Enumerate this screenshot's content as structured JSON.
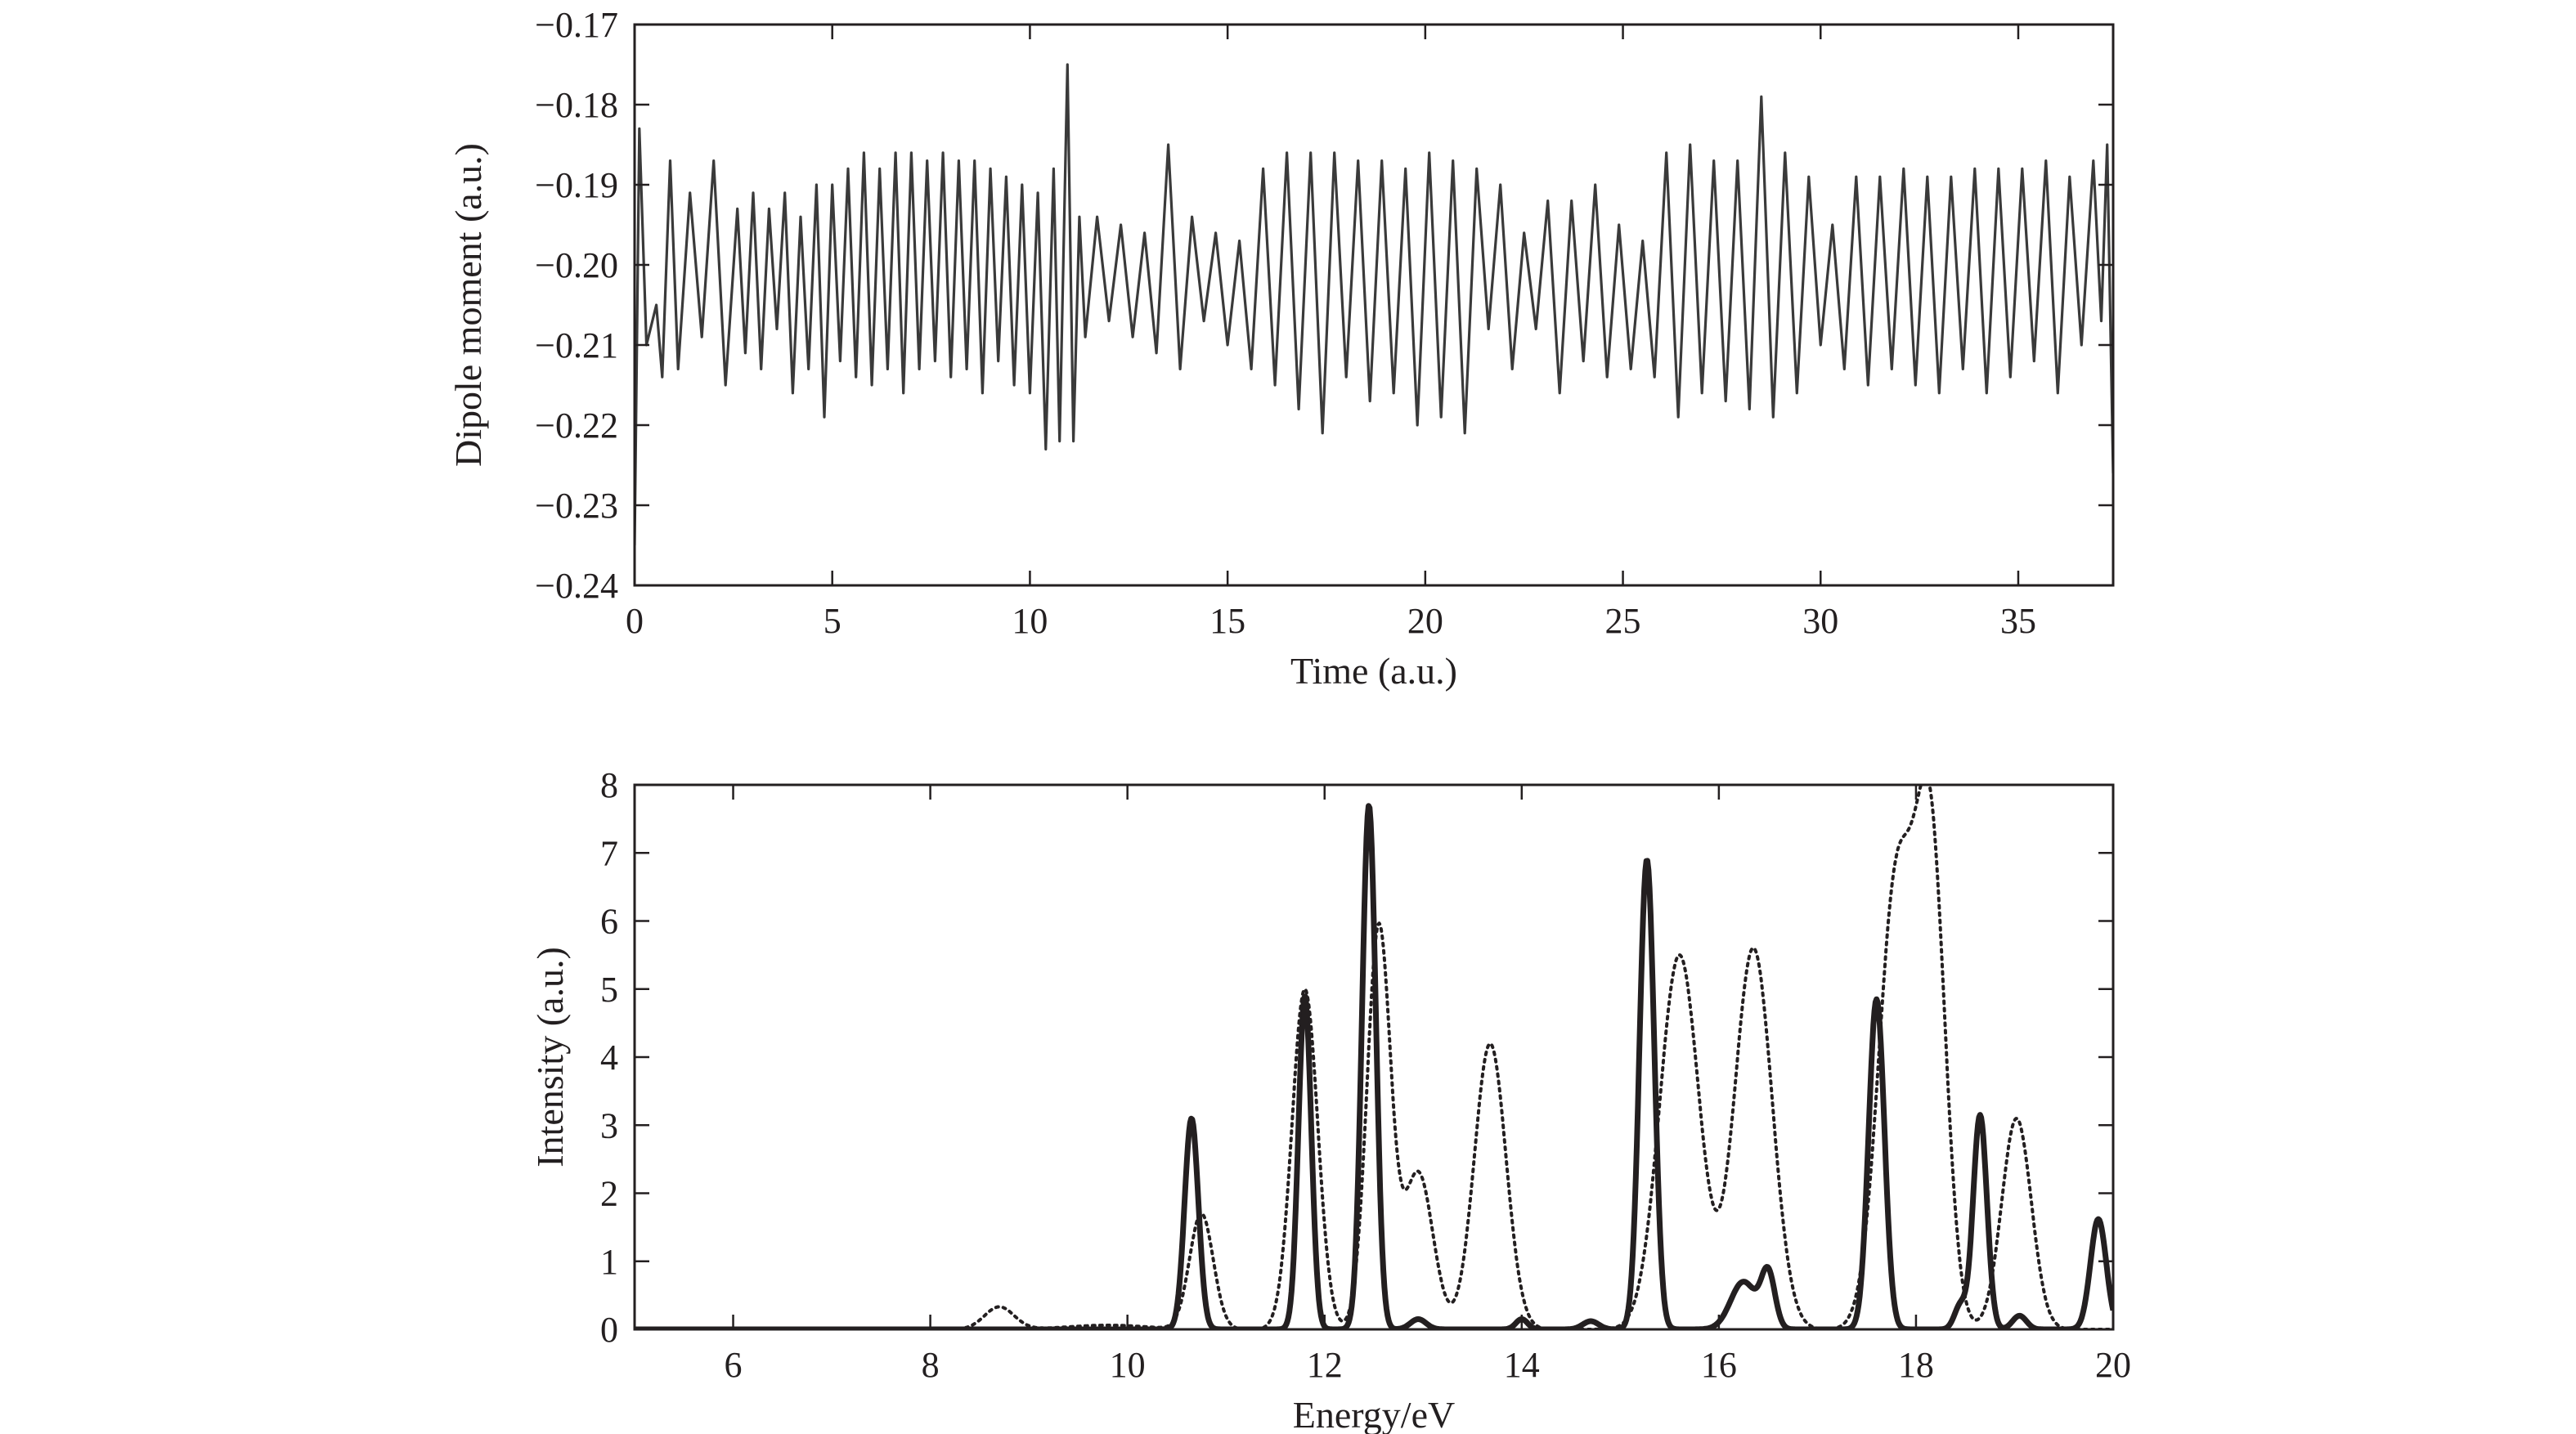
{
  "chart_data": [
    {
      "type": "line",
      "title": "",
      "xlabel": "Time (a.u.)",
      "ylabel": "Dipole moment (a.u.)",
      "xlim": [
        0,
        37.4
      ],
      "ylim": [
        -0.24,
        -0.17
      ],
      "xticks": [
        0,
        5,
        10,
        15,
        20,
        25,
        30,
        35
      ],
      "xtick_labels": [
        "0",
        "5",
        "10",
        "15",
        "20",
        "25",
        "30",
        "35"
      ],
      "yticks": [
        -0.24,
        -0.23,
        -0.22,
        -0.21,
        -0.2,
        -0.19,
        -0.18,
        -0.17
      ],
      "ytick_labels": [
        "−0.24",
        "−0.23",
        "−0.22",
        "−0.21",
        "−0.20",
        "−0.19",
        "−0.18",
        "−0.17"
      ],
      "grid": false,
      "series": [
        {
          "name": "dipole moment",
          "style": "solid",
          "color": "#3a3a3a",
          "x": [
            0.0,
            0.12,
            0.3,
            0.55,
            0.7,
            0.9,
            1.1,
            1.4,
            1.7,
            2.0,
            2.3,
            2.6,
            2.8,
            3.0,
            3.2,
            3.4,
            3.6,
            3.8,
            4.0,
            4.2,
            4.4,
            4.6,
            4.8,
            5.0,
            5.2,
            5.4,
            5.6,
            5.8,
            6.0,
            6.2,
            6.4,
            6.6,
            6.8,
            7.0,
            7.2,
            7.4,
            7.6,
            7.8,
            8.0,
            8.2,
            8.4,
            8.6,
            8.8,
            9.0,
            9.2,
            9.4,
            9.6,
            9.8,
            10.0,
            10.2,
            10.4,
            10.6,
            10.75,
            10.95,
            11.1,
            11.25,
            11.4,
            11.7,
            12.0,
            12.3,
            12.6,
            12.9,
            13.2,
            13.5,
            13.8,
            14.1,
            14.4,
            14.7,
            15.0,
            15.3,
            15.6,
            15.9,
            16.2,
            16.5,
            16.8,
            17.1,
            17.4,
            17.7,
            18.0,
            18.3,
            18.6,
            18.9,
            19.2,
            19.5,
            19.8,
            20.1,
            20.4,
            20.7,
            21.0,
            21.3,
            21.6,
            21.9,
            22.2,
            22.5,
            22.8,
            23.1,
            23.4,
            23.7,
            24.0,
            24.3,
            24.6,
            24.9,
            25.2,
            25.5,
            25.8,
            26.1,
            26.4,
            26.7,
            27.0,
            27.3,
            27.6,
            27.9,
            28.2,
            28.5,
            28.8,
            29.1,
            29.4,
            29.7,
            30.0,
            30.3,
            30.6,
            30.9,
            31.2,
            31.5,
            31.8,
            32.1,
            32.4,
            32.7,
            33.0,
            33.3,
            33.6,
            33.9,
            34.2,
            34.5,
            34.8,
            35.1,
            35.4,
            35.7,
            36.0,
            36.3,
            36.6,
            36.9,
            37.1,
            37.25,
            37.4
          ],
          "y": [
            -0.235,
            -0.183,
            -0.21,
            -0.205,
            -0.214,
            -0.187,
            -0.213,
            -0.191,
            -0.209,
            -0.187,
            -0.215,
            -0.193,
            -0.211,
            -0.191,
            -0.213,
            -0.193,
            -0.208,
            -0.191,
            -0.216,
            -0.194,
            -0.213,
            -0.19,
            -0.219,
            -0.19,
            -0.212,
            -0.188,
            -0.214,
            -0.186,
            -0.215,
            -0.188,
            -0.213,
            -0.186,
            -0.216,
            -0.186,
            -0.213,
            -0.187,
            -0.212,
            -0.186,
            -0.214,
            -0.187,
            -0.213,
            -0.187,
            -0.216,
            -0.188,
            -0.212,
            -0.189,
            -0.215,
            -0.19,
            -0.216,
            -0.191,
            -0.223,
            -0.188,
            -0.222,
            -0.175,
            -0.222,
            -0.194,
            -0.209,
            -0.194,
            -0.207,
            -0.195,
            -0.209,
            -0.196,
            -0.211,
            -0.185,
            -0.213,
            -0.194,
            -0.207,
            -0.196,
            -0.21,
            -0.197,
            -0.213,
            -0.188,
            -0.215,
            -0.186,
            -0.218,
            -0.186,
            -0.221,
            -0.186,
            -0.214,
            -0.187,
            -0.217,
            -0.187,
            -0.216,
            -0.188,
            -0.22,
            -0.186,
            -0.219,
            -0.187,
            -0.221,
            -0.188,
            -0.208,
            -0.19,
            -0.213,
            -0.196,
            -0.208,
            -0.192,
            -0.216,
            -0.192,
            -0.212,
            -0.19,
            -0.214,
            -0.195,
            -0.213,
            -0.197,
            -0.214,
            -0.186,
            -0.219,
            -0.185,
            -0.216,
            -0.187,
            -0.217,
            -0.187,
            -0.218,
            -0.179,
            -0.219,
            -0.186,
            -0.216,
            -0.189,
            -0.21,
            -0.195,
            -0.213,
            -0.189,
            -0.215,
            -0.189,
            -0.213,
            -0.188,
            -0.215,
            -0.189,
            -0.216,
            -0.189,
            -0.213,
            -0.188,
            -0.216,
            -0.188,
            -0.214,
            -0.188,
            -0.212,
            -0.187,
            -0.216,
            -0.189,
            -0.21,
            -0.187,
            -0.207,
            -0.185,
            -0.226
          ]
        }
      ]
    },
    {
      "type": "line",
      "title": "",
      "xlabel": "Energy/eV",
      "ylabel": "Intensity (a.u.)",
      "xlim": [
        5,
        20
      ],
      "ylim": [
        0,
        8
      ],
      "xticks": [
        6,
        8,
        10,
        12,
        14,
        16,
        18,
        20
      ],
      "xtick_labels": [
        "6",
        "8",
        "10",
        "12",
        "14",
        "16",
        "18",
        "20"
      ],
      "yticks": [
        0,
        1,
        2,
        3,
        4,
        5,
        6,
        7,
        8
      ],
      "ytick_labels": [
        "0",
        "1",
        "2",
        "3",
        "4",
        "5",
        "6",
        "7",
        "8"
      ],
      "grid": false,
      "series": [
        {
          "name": "solid spectrum",
          "style": "solid",
          "color": "#231f20",
          "baseline": 0,
          "peaks": [
            {
              "center": 10.65,
              "height": 3.1,
              "width": 0.07
            },
            {
              "center": 11.8,
              "height": 4.9,
              "width": 0.065
            },
            {
              "center": 12.45,
              "height": 7.7,
              "width": 0.07
            },
            {
              "center": 12.95,
              "height": 0.15,
              "width": 0.08
            },
            {
              "center": 14.0,
              "height": 0.15,
              "width": 0.06
            },
            {
              "center": 14.7,
              "height": 0.12,
              "width": 0.08
            },
            {
              "center": 15.27,
              "height": 6.9,
              "width": 0.075
            },
            {
              "center": 16.25,
              "height": 0.7,
              "width": 0.13
            },
            {
              "center": 16.5,
              "height": 0.8,
              "width": 0.07
            },
            {
              "center": 17.6,
              "height": 4.85,
              "width": 0.08
            },
            {
              "center": 18.45,
              "height": 0.35,
              "width": 0.06
            },
            {
              "center": 18.65,
              "height": 3.15,
              "width": 0.07
            },
            {
              "center": 19.05,
              "height": 0.2,
              "width": 0.07
            },
            {
              "center": 19.85,
              "height": 1.62,
              "width": 0.08
            }
          ]
        },
        {
          "name": "dotted spectrum",
          "style": "dotted",
          "color": "#231f20",
          "baseline": 0,
          "peaks": [
            {
              "center": 8.7,
              "height": 0.33,
              "width": 0.15
            },
            {
              "center": 9.8,
              "height": 0.06,
              "width": 0.4
            },
            {
              "center": 10.75,
              "height": 1.7,
              "width": 0.12
            },
            {
              "center": 11.8,
              "height": 5.0,
              "width": 0.13
            },
            {
              "center": 12.55,
              "height": 5.9,
              "width": 0.12
            },
            {
              "center": 12.95,
              "height": 2.3,
              "width": 0.15
            },
            {
              "center": 13.68,
              "height": 4.2,
              "width": 0.16
            },
            {
              "center": 15.6,
              "height": 5.5,
              "width": 0.2
            },
            {
              "center": 16.35,
              "height": 5.6,
              "width": 0.19
            },
            {
              "center": 17.8,
              "height": 6.5,
              "width": 0.18
            },
            {
              "center": 18.15,
              "height": 6.9,
              "width": 0.15
            },
            {
              "center": 19.02,
              "height": 3.1,
              "width": 0.15
            }
          ]
        }
      ]
    }
  ]
}
